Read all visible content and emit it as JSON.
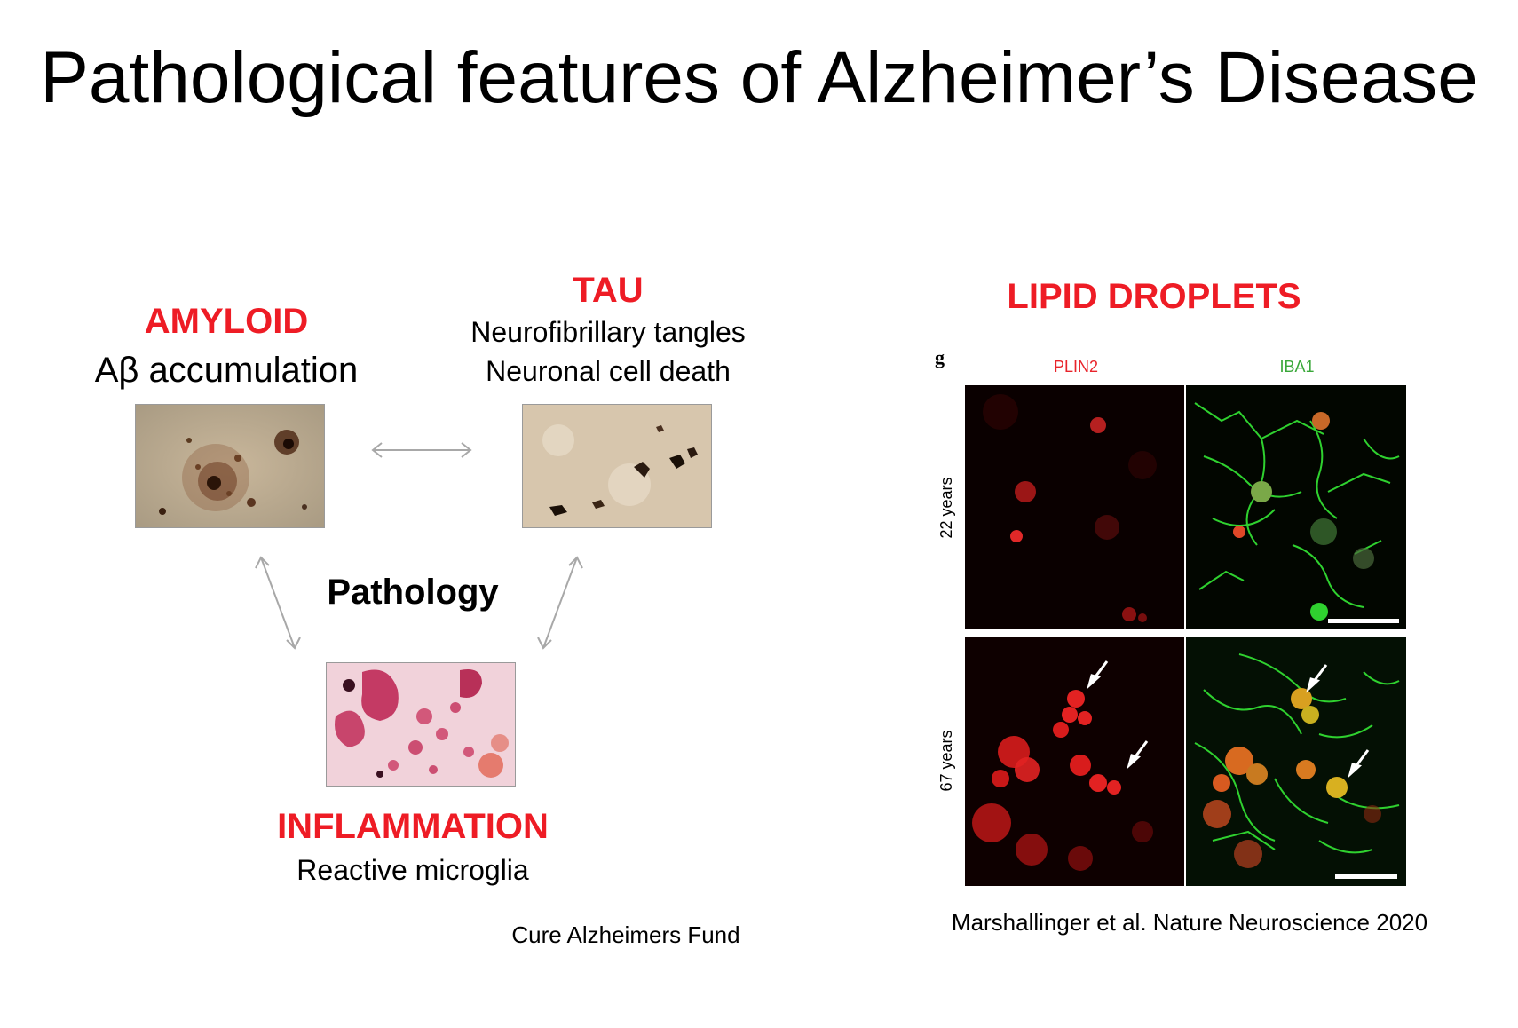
{
  "slide": {
    "title": "Pathological features of Alzheimer’s Disease"
  },
  "left": {
    "amyloid": {
      "heading": "AMYLOID",
      "subtitle": "Aβ accumulation"
    },
    "tau": {
      "heading": "TAU",
      "lines": [
        "Neurofibrillary tangles",
        "Neuronal cell death"
      ]
    },
    "center_label": "Pathology",
    "inflammation": {
      "heading": "INFLAMMATION",
      "subtitle": "Reactive microglia"
    },
    "credit": "Cure Alzheimers Fund"
  },
  "right": {
    "heading": "LIPID DROPLETS",
    "figure": {
      "panel_letter": "g",
      "columns": [
        "PLIN2",
        "IBA1"
      ],
      "rows": [
        "22 years",
        "67 years"
      ]
    },
    "credit": "Marshallinger et al. Nature Neuroscience 2020"
  },
  "colors": {
    "heading_red": "#ee1c25",
    "plin2_label": "#e8242b",
    "iba1_label": "#3aa83a",
    "arrow_gray": "#a8a8a8"
  }
}
